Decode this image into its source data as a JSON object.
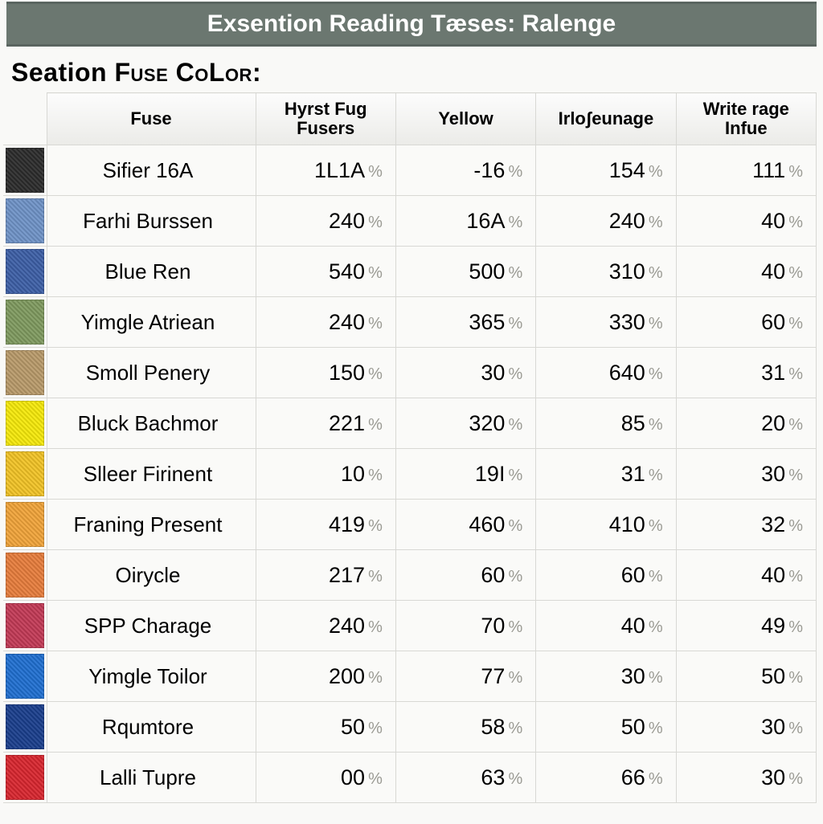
{
  "banner_title": "Exsention Reading Tæses: Ralenge",
  "subtitle_html": "Seation Fuse Color:",
  "unit_symbol": "%",
  "columns": [
    "Fuse",
    "Hyrst Fug Fusers",
    "Yellow",
    "Irloʃeunage",
    "Write rage Infue"
  ],
  "swatch_texture_overlay": "repeating-linear-gradient(45deg, rgba(255,255,255,0.08) 0 2px, rgba(0,0,0,0.10) 2px 4px)",
  "rows": [
    {
      "swatch": "#2b2b2b",
      "name": "Sifier 16A",
      "v": [
        "1L1A",
        "-16",
        "154",
        "111"
      ]
    },
    {
      "swatch": "#6f93c7",
      "name": "Farhi Burssen",
      "v": [
        "240",
        "16A",
        "240",
        "40"
      ]
    },
    {
      "swatch": "#3d5fa6",
      "name": "Blue Ren",
      "v": [
        "540",
        "500",
        "310",
        "40"
      ]
    },
    {
      "swatch": "#7f9a5f",
      "name": "Yimgle Atriean",
      "v": [
        "240",
        "365",
        "330",
        "60"
      ]
    },
    {
      "swatch": "#b89a6a",
      "name": "Smoll Penery",
      "v": [
        "150",
        "30",
        "640",
        "31"
      ]
    },
    {
      "swatch": "#f5e90a",
      "name": "Bluck Bachmor",
      "v": [
        "221",
        "320",
        "85",
        "20"
      ]
    },
    {
      "swatch": "#f2c326",
      "name": "Slleer Firinent",
      "v": [
        "10",
        "19I",
        "31",
        "30"
      ]
    },
    {
      "swatch": "#f1a43a",
      "name": "Franing Present",
      "v": [
        "419",
        "460",
        "410",
        "32"
      ]
    },
    {
      "swatch": "#e77d3c",
      "name": "Oirycle",
      "v": [
        "217",
        "60",
        "60",
        "40"
      ]
    },
    {
      "swatch": "#c23a56",
      "name": "SPP Charage",
      "v": [
        "240",
        "70",
        "40",
        "49"
      ]
    },
    {
      "swatch": "#1f6fd0",
      "name": "Yimgle Toilor",
      "v": [
        "200",
        "77",
        "30",
        "50"
      ]
    },
    {
      "swatch": "#1a3e8c",
      "name": "Rqumtore",
      "v": [
        "50",
        "58",
        "50",
        "30"
      ]
    },
    {
      "swatch": "#d8262f",
      "name": "Lalli Tupre",
      "v": [
        "00",
        "63",
        "66",
        "30"
      ]
    }
  ]
}
